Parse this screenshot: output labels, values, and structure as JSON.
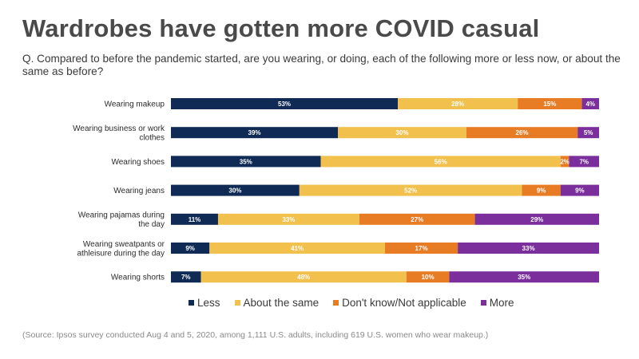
{
  "chart_data": {
    "type": "bar",
    "orientation": "horizontal",
    "stacked": true,
    "title": "Wardrobes have gotten more COVID casual",
    "subtitle": "Q. Compared to before the pandemic started, are you wearing, or doing, each of the following more or less now, or about the same as before?",
    "source": "(Source: Ipsos survey conducted Aug 4 and 5, 2020, among 1,111 U.S. adults, including 619 U.S. women who wear makeup.)",
    "categories": [
      [
        "Wearing makeup"
      ],
      [
        "Wearing business or work",
        "clothes"
      ],
      [
        "Wearing shoes"
      ],
      [
        "Wearing jeans"
      ],
      [
        "Wearing pajamas during",
        "the day"
      ],
      [
        "Wearing sweatpants or",
        "athleisure during the day"
      ],
      [
        "Wearing shorts"
      ]
    ],
    "series": [
      {
        "name": "Less",
        "color": "#0f2a55",
        "values": [
          53,
          39,
          35,
          30,
          11,
          9,
          7
        ]
      },
      {
        "name": "About the same",
        "color": "#f1c04d",
        "values": [
          28,
          30,
          56,
          52,
          33,
          41,
          48
        ]
      },
      {
        "name": "Don't know/Not applicable",
        "color": "#e87c25",
        "values": [
          15,
          26,
          2,
          9,
          27,
          17,
          10
        ]
      },
      {
        "name": "More",
        "color": "#7a2f9c",
        "values": [
          4,
          5,
          7,
          9,
          29,
          33,
          35
        ]
      }
    ],
    "value_suffix": "%",
    "legend_position": "bottom"
  }
}
